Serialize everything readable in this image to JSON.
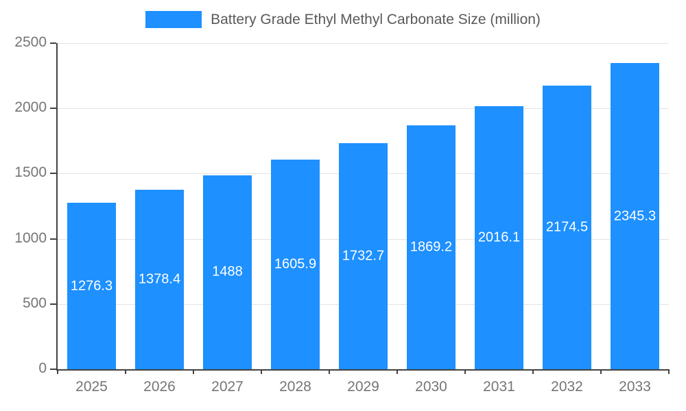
{
  "chart_data": {
    "type": "bar",
    "title": "Battery Grade Ethyl Methyl Carbonate Size (million)",
    "categories": [
      "2025",
      "2026",
      "2027",
      "2028",
      "2029",
      "2030",
      "2031",
      "2032",
      "2033"
    ],
    "values": [
      1276.3,
      1378.4,
      1488,
      1605.9,
      1732.7,
      1869.2,
      2016.1,
      2174.5,
      2345.3
    ],
    "value_labels": [
      "1276.3",
      "1378.4",
      "1488",
      "1605.9",
      "1732.7",
      "1869.2",
      "2016.1",
      "2174.5",
      "2345.3"
    ],
    "xlabel": "",
    "ylabel": "",
    "ylim": [
      0,
      2500
    ],
    "yticks": [
      0,
      500,
      1000,
      1500,
      2000,
      2500
    ],
    "grid": true,
    "legend_position": "top-center",
    "colors": {
      "bar": "#1E90FF",
      "grid": "#e3e3e3",
      "axis": "#424242",
      "tick_label": "#757575",
      "title": "#595959",
      "value_label": "#ffffff"
    }
  }
}
